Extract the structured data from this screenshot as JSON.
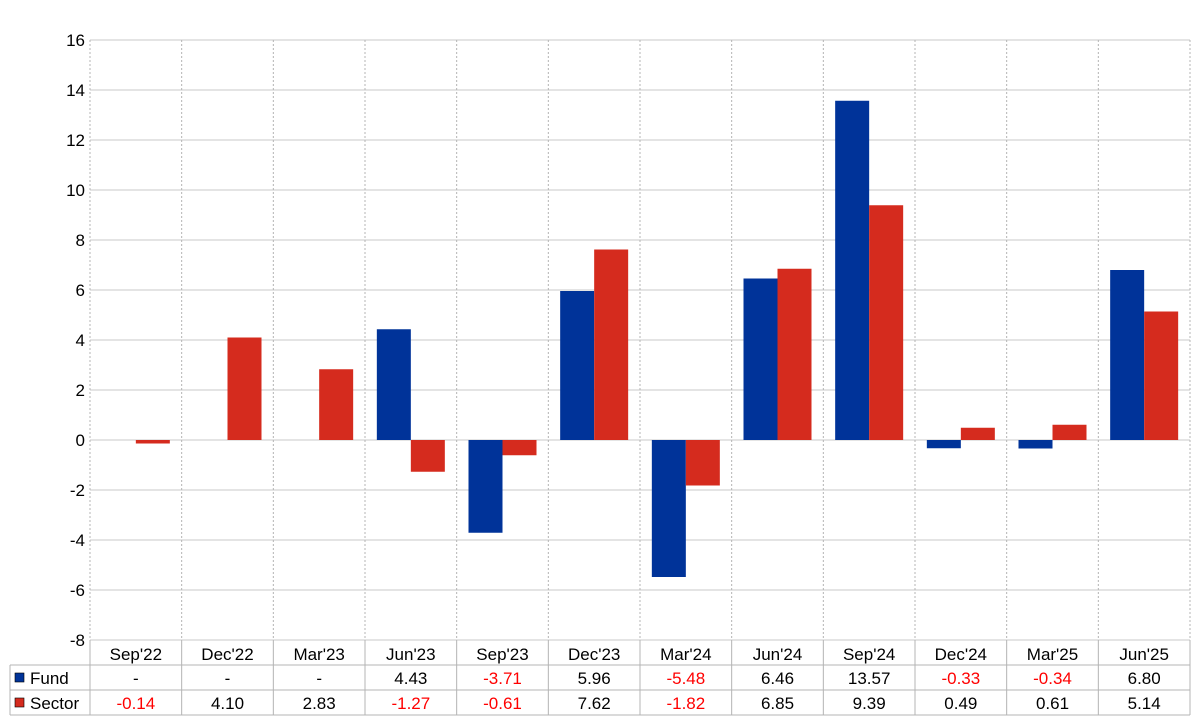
{
  "chart_data": {
    "type": "bar",
    "categories": [
      "Sep'22",
      "Dec'22",
      "Mar'23",
      "Jun'23",
      "Sep'23",
      "Dec'23",
      "Mar'24",
      "Jun'24",
      "Sep'24",
      "Dec'24",
      "Mar'25",
      "Jun'25"
    ],
    "series": [
      {
        "name": "Fund",
        "color": "#003399",
        "values": [
          null,
          null,
          null,
          4.43,
          -3.71,
          5.96,
          -5.48,
          6.46,
          13.57,
          -0.33,
          -0.34,
          6.8
        ],
        "labels": [
          "-",
          "-",
          "-",
          "4.43",
          "-3.71",
          "5.96",
          "-5.48",
          "6.46",
          "13.57",
          "-0.33",
          "-0.34",
          "6.80"
        ]
      },
      {
        "name": "Sector",
        "color": "#d52b1e",
        "values": [
          -0.14,
          4.1,
          2.83,
          -1.27,
          -0.61,
          7.62,
          -1.82,
          6.85,
          9.39,
          0.49,
          0.61,
          5.14
        ],
        "labels": [
          "-0.14",
          "4.10",
          "2.83",
          "-1.27",
          "-0.61",
          "7.62",
          "-1.82",
          "6.85",
          "9.39",
          "0.49",
          "0.61",
          "5.14"
        ]
      }
    ],
    "title": "",
    "xlabel": "",
    "ylabel": "",
    "ylim": [
      -8,
      16
    ],
    "yticks": [
      "16",
      "14",
      "12",
      "10",
      "8",
      "6",
      "4",
      "2",
      "0",
      "-2",
      "-4",
      "-6",
      "-8"
    ],
    "grid": true,
    "legend": "table-left",
    "negative_label_color": "#ff0000"
  }
}
